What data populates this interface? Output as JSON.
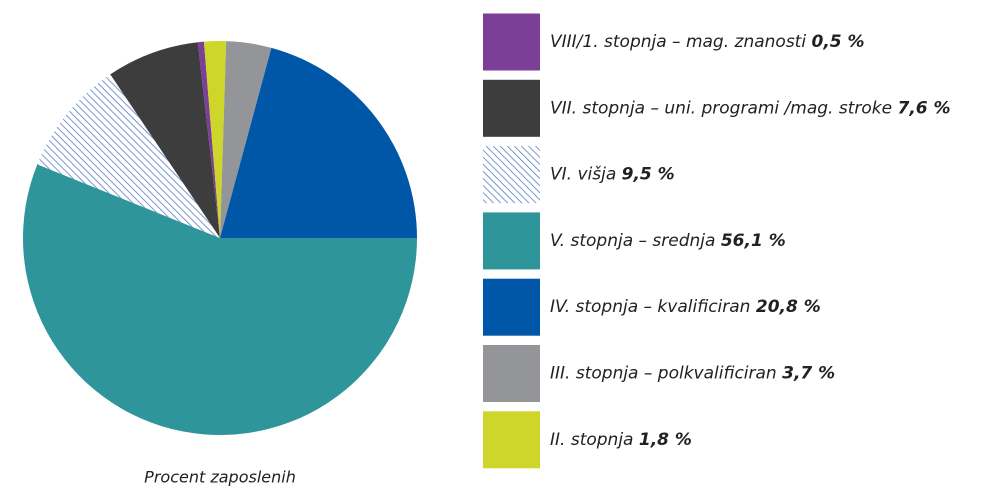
{
  "chart_data": {
    "type": "pie",
    "caption": "Procent zaposlenih",
    "categories": [
      "VIII/1. stopnja – mag. znanosti",
      "VII. stopnja – uni. programi /mag. stroke",
      "VI. višja",
      "V. stopnja – srednja",
      "IV. stopnja – kvalificiran",
      "III. stopnja – polkvalificiran",
      "II. stopnja"
    ],
    "values": [
      0.5,
      7.6,
      9.5,
      56.1,
      20.8,
      3.7,
      1.8
    ],
    "value_labels": [
      "0,5 %",
      "7,6 %",
      "9,5 %",
      "56,1 %",
      "20,8 %",
      "3,7 %",
      "1,8 %"
    ],
    "colors": [
      "#7b3f98",
      "#3d3d3d",
      "hatch",
      "#2e969b",
      "#0057a8",
      "#939598",
      "#cdd629"
    ]
  }
}
